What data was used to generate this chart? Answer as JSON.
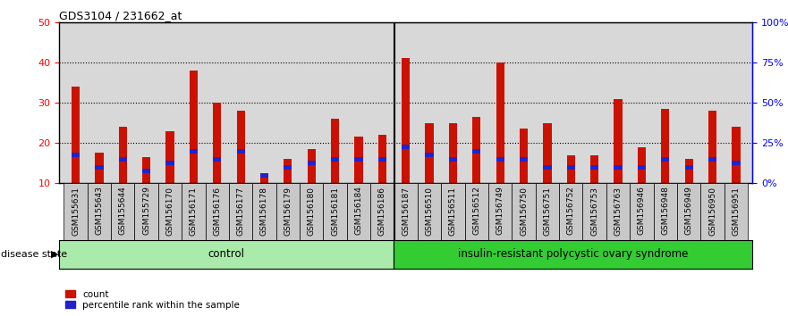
{
  "title": "GDS3104 / 231662_at",
  "samples": [
    "GSM155631",
    "GSM155643",
    "GSM155644",
    "GSM155729",
    "GSM156170",
    "GSM156171",
    "GSM156176",
    "GSM156177",
    "GSM156178",
    "GSM156179",
    "GSM156180",
    "GSM156181",
    "GSM156184",
    "GSM156186",
    "GSM156187",
    "GSM156510",
    "GSM156511",
    "GSM156512",
    "GSM156749",
    "GSM156750",
    "GSM156751",
    "GSM156752",
    "GSM156753",
    "GSM156763",
    "GSM156946",
    "GSM156948",
    "GSM156949",
    "GSM156950",
    "GSM156951"
  ],
  "counts": [
    34,
    17.5,
    24,
    16.5,
    23,
    38,
    30,
    28,
    12,
    16,
    18.5,
    26,
    21.5,
    22,
    41,
    25,
    25,
    26.5,
    40,
    23.5,
    25,
    17,
    17,
    31,
    19,
    28.5,
    16,
    28,
    24
  ],
  "percentile_values": [
    17,
    14,
    16,
    13,
    15,
    18,
    16,
    18,
    12,
    14,
    15,
    16,
    16,
    16,
    19,
    17,
    16,
    18,
    16,
    16,
    14,
    14,
    14,
    14,
    14,
    16,
    14,
    16,
    15
  ],
  "control_count": 14,
  "control_label": "control",
  "disease_label": "insulin-resistant polycystic ovary syndrome",
  "disease_state_label": "disease state",
  "bar_color": "#CC1100",
  "percentile_color": "#2222CC",
  "plot_bg_color": "#D8D8D8",
  "tick_bg_color": "#C8C8C8",
  "control_bg_color": "#AAEAAA",
  "disease_bg_color": "#33CC33",
  "ylim_left": [
    10,
    50
  ],
  "ylim_right": [
    0,
    100
  ],
  "yticks_left": [
    10,
    20,
    30,
    40,
    50
  ],
  "yticks_right": [
    0,
    25,
    50,
    75,
    100
  ],
  "ytick_labels_right": [
    "0%",
    "25%",
    "50%",
    "75%",
    "100%"
  ],
  "legend_count_label": "count",
  "legend_percentile_label": "percentile rank within the sample",
  "bar_width": 0.35
}
